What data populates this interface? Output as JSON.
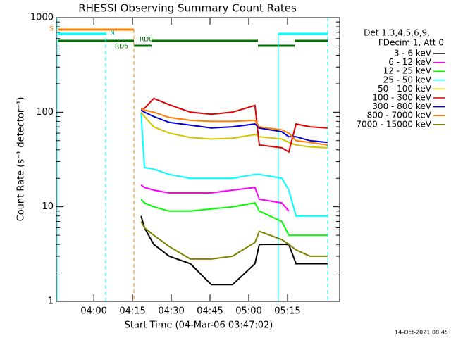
{
  "chart_data": {
    "type": "line",
    "title": "RHESSI Observing Summary Count Rates",
    "x_label": "Start Time (04-Mar-06 03:47:02)",
    "y_label": "Count Rate (s⁻¹ detector⁻¹)",
    "legend_header": [
      "Det 1,3,4,5,6,9,",
      "FDecim 1, Att 0"
    ],
    "footer": "14-Oct-2021 08:45",
    "state_labels": [
      "S",
      "N",
      "RD0",
      "RD6"
    ],
    "log_y": true,
    "xlim": [
      225.5,
      335.2
    ],
    "ylim": [
      1,
      1000
    ],
    "xticks": [
      {
        "value": 240,
        "label": "04:00"
      },
      {
        "value": 255,
        "label": "04:15"
      },
      {
        "value": 270,
        "label": "04:30"
      },
      {
        "value": 285,
        "label": "04:45"
      },
      {
        "value": 300,
        "label": "05:00"
      },
      {
        "value": 315,
        "label": "05:15"
      }
    ],
    "yticks": [
      1,
      10,
      100,
      1000
    ],
    "x": [
      258.3,
      259.6,
      263.2,
      269.2,
      277.4,
      285.5,
      293.7,
      302.4,
      304.1,
      312.8,
      315.5,
      318.3,
      323.7,
      330.5
    ],
    "series": [
      {
        "name": "3 - 6 keV",
        "color": "#000000",
        "values": [
          8,
          6,
          4,
          3,
          2.5,
          1.5,
          1.5,
          2.5,
          4,
          4,
          4,
          2.5,
          2.5,
          2.5
        ]
      },
      {
        "name": "6 - 12 keV",
        "color": "#ff00ff",
        "values": [
          17,
          16,
          15,
          14,
          14,
          14,
          15,
          16,
          12,
          11,
          9,
          null,
          null,
          null
        ]
      },
      {
        "name": "12 - 25 keV",
        "color": "#00ff00",
        "values": [
          12,
          11,
          10,
          9,
          9,
          9.5,
          10,
          11,
          9,
          7,
          5,
          5,
          5,
          5
        ]
      },
      {
        "name": "25 - 50 keV",
        "color": "#00ffff",
        "values": [
          100,
          26,
          25,
          22,
          20,
          20,
          20,
          22,
          22,
          20,
          15,
          8,
          8,
          8
        ]
      },
      {
        "name": "50 - 100 keV",
        "color": "#d4c400",
        "values": [
          100,
          90,
          70,
          60,
          54,
          52,
          53,
          58,
          55,
          52,
          48,
          45,
          43,
          42
        ]
      },
      {
        "name": "100 - 300 keV",
        "color": "#e00000",
        "values": [
          107,
          110,
          140,
          120,
          100,
          95,
          100,
          118,
          45,
          42,
          38,
          75,
          70,
          68
        ]
      },
      {
        "name": "300 - 800 keV",
        "color": "#0000d0",
        "values": [
          105,
          100,
          90,
          78,
          73,
          68,
          70,
          75,
          68,
          62,
          55,
          55,
          50,
          48
        ]
      },
      {
        "name": "800 - 7000 keV",
        "color": "#ff8000",
        "values": [
          110,
          105,
          100,
          88,
          82,
          80,
          80,
          82,
          70,
          65,
          60,
          50,
          48,
          45
        ]
      },
      {
        "name": "7000 - 15000 keV",
        "color": "#808000",
        "values": [
          7,
          6,
          5,
          3.8,
          2.8,
          2.8,
          3,
          4.2,
          5.5,
          4.5,
          4,
          3.5,
          3,
          3
        ]
      }
    ]
  }
}
